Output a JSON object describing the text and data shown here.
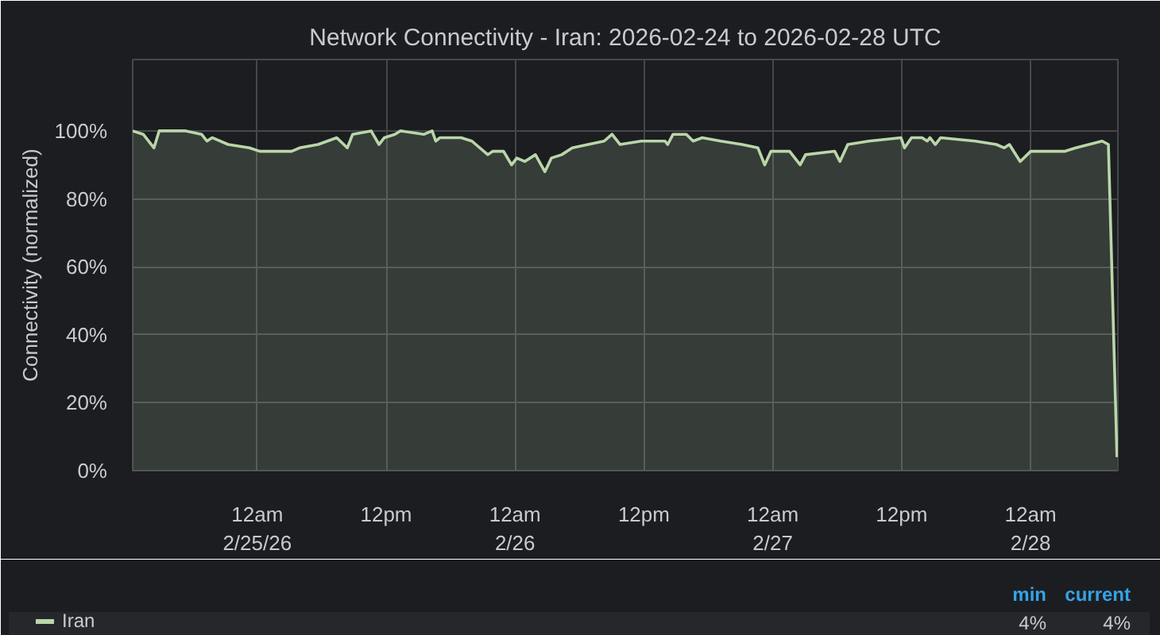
{
  "chart_data": {
    "type": "area",
    "title": "Network Connectivity - Iran: 2026-02-24 to 2026-02-28 UTC",
    "ylabel": "Connectivity (normalized)",
    "x": [
      "2026-02-24T12:24",
      "2026-02-24T13:23",
      "2026-02-24T14:23",
      "2026-02-24T14:52",
      "2026-02-24T17:20",
      "2026-02-24T18:49",
      "2026-02-24T19:19",
      "2026-02-24T19:48",
      "2026-02-24T21:17",
      "2026-02-24T23:16",
      "2026-02-25T00:14",
      "2026-02-25T03:12",
      "2026-02-25T03:56",
      "2026-02-25T05:40",
      "2026-02-25T07:24",
      "2026-02-25T08:23",
      "2026-02-25T08:53",
      "2026-02-25T10:36",
      "2026-02-25T11:20",
      "2026-02-25T11:50",
      "2026-02-25T12:49",
      "2026-02-25T13:19",
      "2026-02-25T15:32",
      "2026-02-25T16:17",
      "2026-02-25T16:37",
      "2026-02-25T17:01",
      "2026-02-25T18:59",
      "2026-02-25T19:59",
      "2026-02-25T21:28",
      "2026-02-25T21:56",
      "2026-02-25T22:56",
      "2026-02-25T23:41",
      "2026-02-26T00:10",
      "2026-02-26T00:54",
      "2026-02-26T01:54",
      "2026-02-26T02:47",
      "2026-02-26T03:23",
      "2026-02-26T04:21",
      "2026-02-26T05:20",
      "2026-02-26T06:49",
      "2026-02-26T08:18",
      "2026-02-26T09:02",
      "2026-02-26T09:47",
      "2026-02-26T11:45",
      "2026-02-26T13:58",
      "2026-02-26T14:13",
      "2026-02-26T14:43",
      "2026-02-26T15:57",
      "2026-02-26T16:35",
      "2026-02-26T17:26",
      "2026-02-26T19:09",
      "2026-02-26T21:08",
      "2026-02-26T22:37",
      "2026-02-26T23:15",
      "2026-02-26T23:50",
      "2026-02-27T01:34",
      "2026-02-27T02:33",
      "2026-02-27T03:03",
      "2026-02-27T05:46",
      "2026-02-27T06:15",
      "2026-02-27T06:59",
      "2026-02-27T08:58",
      "2026-02-27T11:56",
      "2026-02-27T12:16",
      "2026-02-27T12:55",
      "2026-02-27T13:54",
      "2026-02-27T14:23",
      "2026-02-27T14:38",
      "2026-02-27T15:08",
      "2026-02-27T15:38",
      "2026-02-27T18:50",
      "2026-02-27T20:49",
      "2026-02-27T21:33",
      "2026-02-27T22:02",
      "2026-02-27T23:02",
      "2026-02-28T00:01",
      "2026-02-28T03:13",
      "2026-02-28T04:13",
      "2026-02-28T06:40",
      "2026-02-28T07:15",
      "2026-02-28T08:03"
    ],
    "series": [
      {
        "name": "Iran",
        "color": "#b9d6a9",
        "values": [
          100,
          99,
          95,
          100,
          100,
          99,
          97,
          98,
          96,
          95,
          94,
          94,
          95,
          96,
          98,
          95,
          99,
          100,
          96,
          98,
          99,
          100,
          99,
          100,
          97,
          98,
          98,
          97,
          93,
          94,
          94,
          90,
          92,
          91,
          93,
          88,
          92,
          93,
          95,
          96,
          97,
          99,
          96,
          97,
          97,
          96,
          99,
          99,
          97,
          98,
          97,
          96,
          95,
          90,
          94,
          94,
          90,
          93,
          94,
          91,
          96,
          97,
          98,
          95,
          98,
          98,
          97,
          98,
          96,
          98,
          97,
          96,
          95,
          96,
          91,
          94,
          94,
          95,
          97,
          96,
          4
        ]
      }
    ],
    "xlim": [
      "2026-02-24T12:24",
      "2026-02-28T08:08"
    ],
    "xticks": [
      {
        "value": "2026-02-25T00:00",
        "label": "12am\n2/25/26"
      },
      {
        "value": "2026-02-25T12:00",
        "label": "12pm"
      },
      {
        "value": "2026-02-26T00:00",
        "label": "12am\n2/26"
      },
      {
        "value": "2026-02-26T12:00",
        "label": "12pm"
      },
      {
        "value": "2026-02-27T00:00",
        "label": "12am\n2/27"
      },
      {
        "value": "2026-02-27T12:00",
        "label": "12pm"
      },
      {
        "value": "2026-02-28T00:00",
        "label": "12am\n2/28"
      }
    ],
    "ylim": [
      0,
      121
    ],
    "yticks": [
      {
        "value": 0,
        "label": "0%"
      },
      {
        "value": 20,
        "label": "20%"
      },
      {
        "value": 40,
        "label": "40%"
      },
      {
        "value": 60,
        "label": "60%"
      },
      {
        "value": 80,
        "label": "80%"
      },
      {
        "value": 100,
        "label": "100%"
      }
    ],
    "grid": true,
    "legend": "bottom",
    "annotations": [
      "min",
      "current",
      "4%",
      "4%"
    ]
  }
}
